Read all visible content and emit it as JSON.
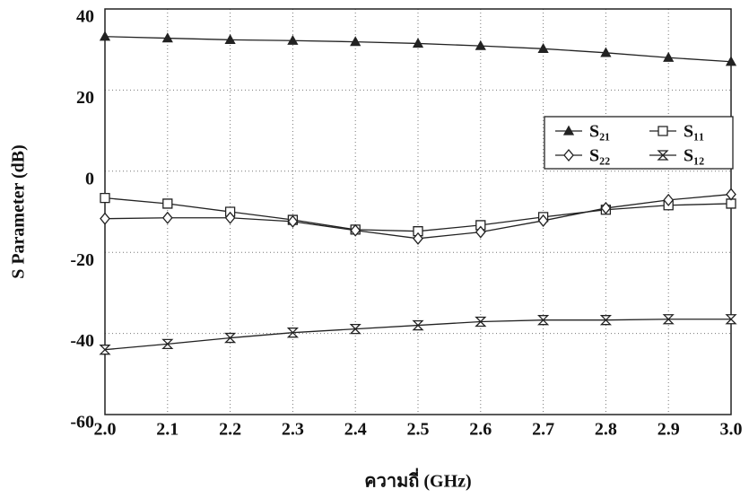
{
  "chart_data": {
    "type": "line",
    "xlabel": "ความถี่ (GHz)",
    "ylabel": "S Parameter (dB)",
    "x": [
      2.0,
      2.1,
      2.2,
      2.3,
      2.4,
      2.5,
      2.6,
      2.7,
      2.8,
      2.9,
      3.0
    ],
    "xlim": [
      2.0,
      3.0
    ],
    "xticks": [
      {
        "value": 2.0,
        "label": "2.0"
      },
      2.1,
      2.2,
      2.3,
      2.4,
      2.5,
      2.6,
      2.7,
      2.8,
      2.9,
      {
        "value": 3.0,
        "label": "3.0"
      }
    ],
    "ylim": [
      -60,
      40
    ],
    "yticks": [
      -60,
      -40,
      -20,
      0,
      20,
      40
    ],
    "grid": true,
    "legend": "upper right",
    "series": [
      {
        "name": "S₂₁",
        "color": "#222222",
        "marker": "triangle",
        "values": [
          33.2,
          32.8,
          32.4,
          32.2,
          31.9,
          31.5,
          30.9,
          30.2,
          29.2,
          28.0,
          27.0
        ]
      },
      {
        "name": "S₁₁",
        "color": "#222222",
        "marker": "square",
        "values": [
          -6.6,
          -8.0,
          -10.0,
          -12.0,
          -14.4,
          -14.8,
          -13.3,
          -11.3,
          -9.5,
          -8.4,
          -8.0
        ]
      },
      {
        "name": "S₂₂",
        "color": "#222222",
        "marker": "diamond",
        "values": [
          -11.7,
          -11.5,
          -11.5,
          -12.4,
          -14.6,
          -16.6,
          -15.0,
          -12.2,
          -9.1,
          -7.1,
          -5.7
        ]
      },
      {
        "name": "S₁₂",
        "color": "#222222",
        "marker": "bowtie",
        "values": [
          -44.0,
          -42.6,
          -41.1,
          -39.8,
          -38.9,
          -38.0,
          -37.1,
          -36.7,
          -36.7,
          -36.5,
          -36.5
        ]
      }
    ]
  }
}
